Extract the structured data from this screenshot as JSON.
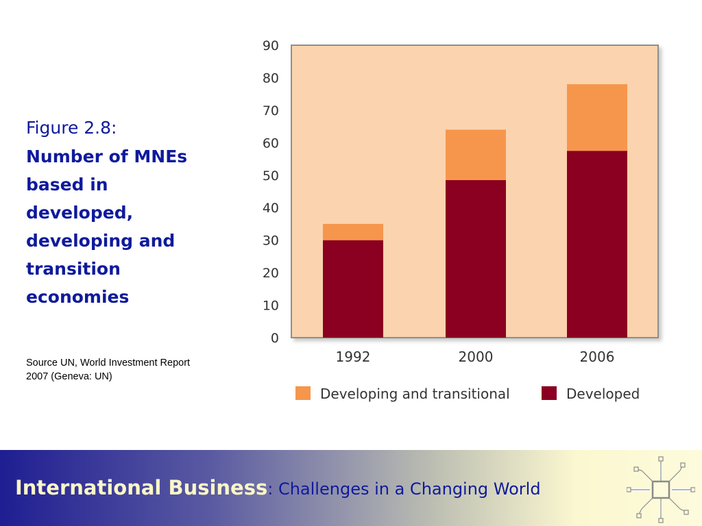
{
  "caption": {
    "figure_number": "Figure 2.8:",
    "title_lines": [
      "Number of MNEs",
      "based in",
      "developed,",
      "developing and",
      "transition",
      "economies"
    ]
  },
  "source": {
    "lines": [
      "Source UN, World Investment Report",
      "2007 (Geneva: UN)"
    ]
  },
  "footer": {
    "title": "International Business",
    "subtitle": ": Challenges in a Changing World"
  },
  "colors": {
    "plot_background": "#fbd3ae",
    "developed": "#8b0020",
    "developing_transitional": "#f6964d",
    "caption_text": "#0f1a9c"
  },
  "chart_data": {
    "type": "bar",
    "stacked": true,
    "categories": [
      "1992",
      "2000",
      "2006"
    ],
    "series": [
      {
        "name": "Developed",
        "values": [
          30,
          48.5,
          57.5
        ],
        "color": "#8b0020"
      },
      {
        "name": "Developing and transitional",
        "values": [
          5,
          15.5,
          20.5
        ],
        "color": "#f6964d"
      }
    ],
    "totals": [
      35,
      64,
      78
    ],
    "y_ticks": [
      0,
      10,
      20,
      30,
      40,
      50,
      60,
      70,
      80,
      90
    ],
    "ylim": [
      0,
      90
    ],
    "grid": false,
    "legend_position": "bottom",
    "legend_order": [
      "Developing and transitional",
      "Developed"
    ]
  }
}
